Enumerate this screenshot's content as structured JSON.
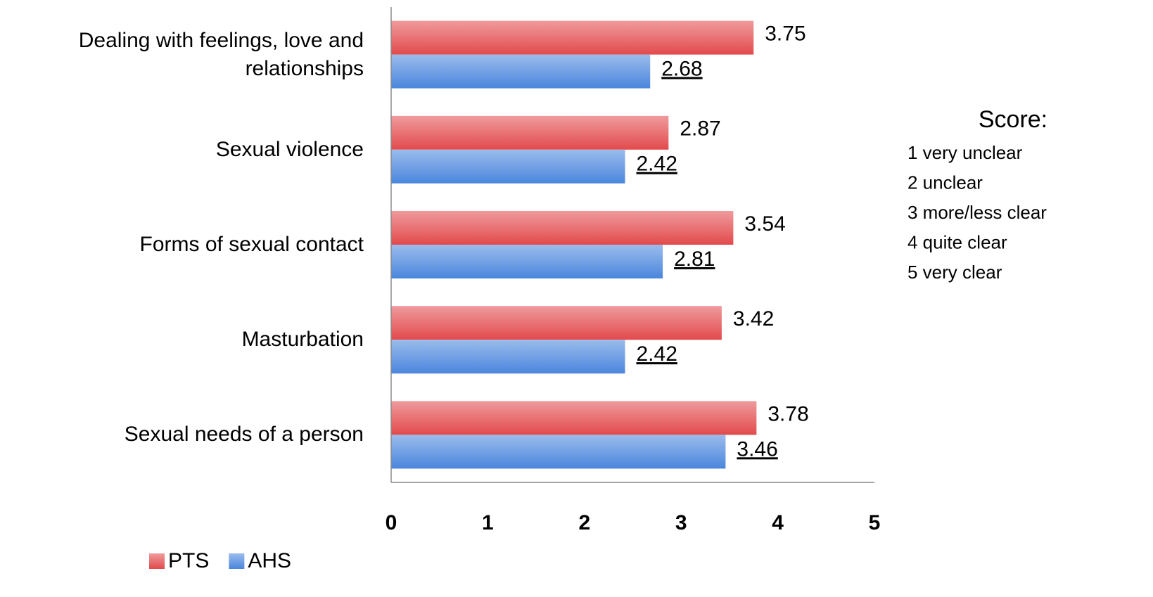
{
  "chart_data": {
    "type": "barh",
    "categories": [
      "Dealing with feelings, love and\nrelationships",
      "Sexual violence",
      "Forms of sexual contact",
      "Masturbation",
      "Sexual needs of a person"
    ],
    "series": [
      {
        "name": "PTS",
        "color": "#e24a4c",
        "values": [
          3.75,
          2.87,
          3.54,
          3.42,
          3.78
        ]
      },
      {
        "name": "AHS",
        "color": "#4a86dc",
        "values": [
          2.68,
          2.42,
          2.81,
          2.42,
          3.46
        ]
      }
    ],
    "xlim": [
      0,
      5
    ],
    "xticks": [
      0,
      1,
      2,
      3,
      4,
      5
    ],
    "grid": false,
    "legend": "bottom",
    "annotation": {
      "title": "Score:",
      "lines": [
        "1 very unclear",
        "2 unclear",
        "3 more/less clear",
        "4 quite clear",
        "5 very clear"
      ]
    }
  }
}
